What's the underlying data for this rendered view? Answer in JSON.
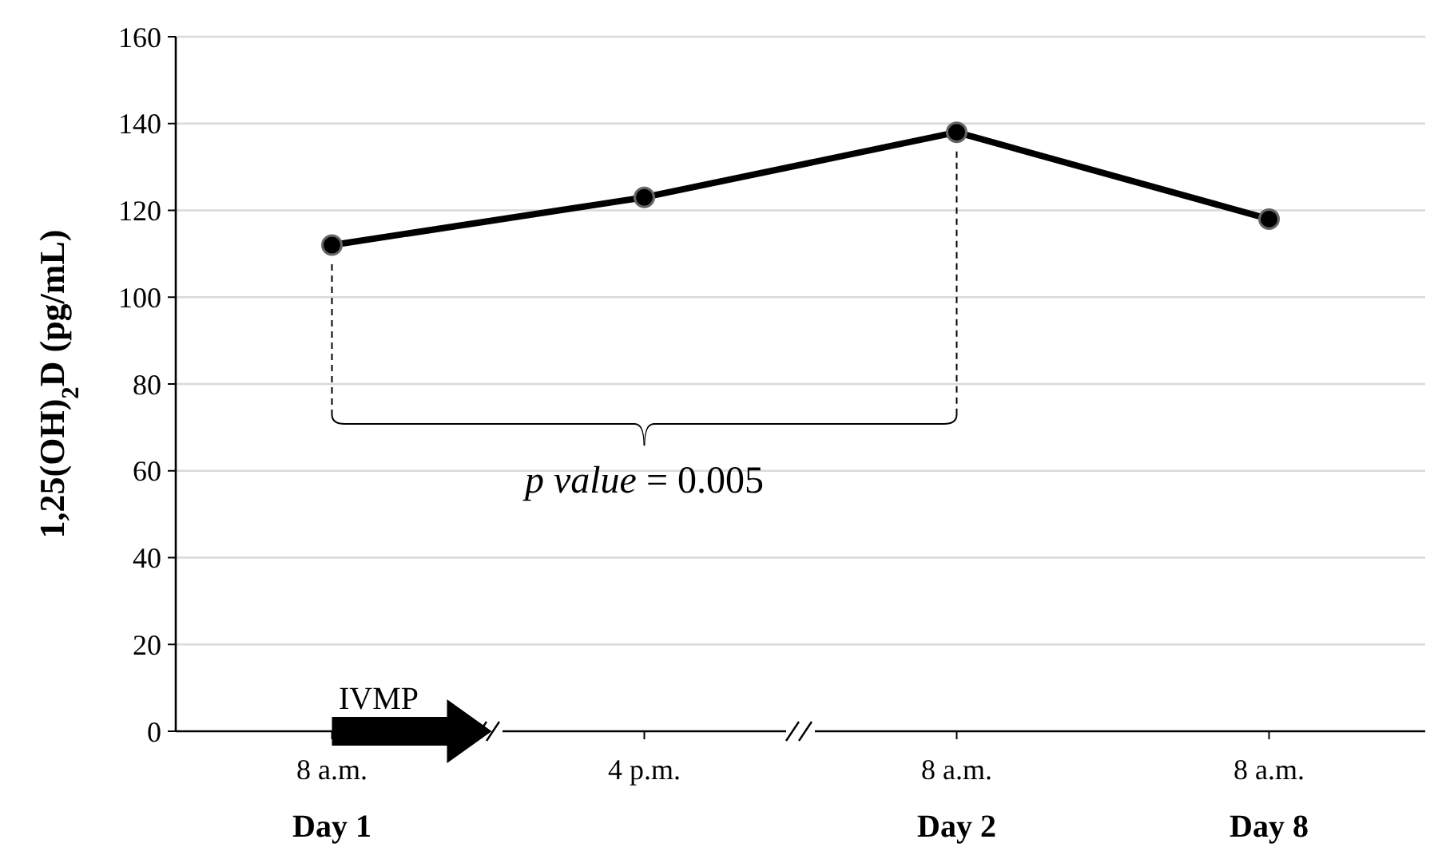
{
  "chart_data": {
    "type": "line",
    "ylabel": "1,25(OH)$_{2}$D (pg/mL)",
    "categories": [
      "8 a.m.\nDay 1",
      "4 p.m.",
      "8 a.m.\nDay 2",
      "8 a.m.\nDay 8"
    ],
    "series": [
      {
        "color": "#000000",
        "values": [
          112,
          123,
          138,
          118
        ]
      }
    ],
    "ylim": [
      0,
      160
    ],
    "yticks": [
      0,
      20,
      40,
      60,
      80,
      100,
      120,
      140,
      160
    ],
    "grid": "y",
    "marker": "circle",
    "line_style": "solid",
    "annotations": [
      "IVMP",
      "p value = 0.005"
    ]
  }
}
